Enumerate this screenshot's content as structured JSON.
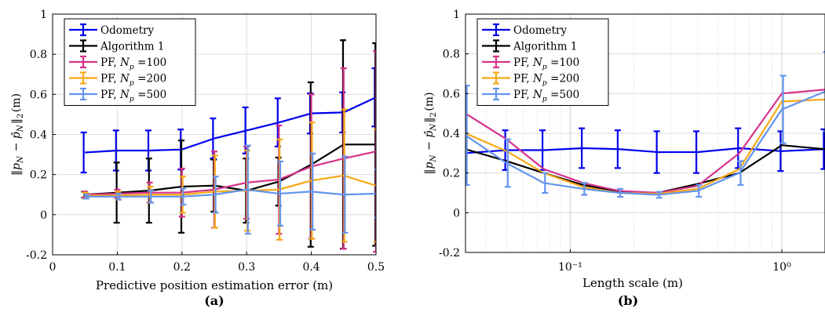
{
  "panels": [
    {
      "label": "(a)",
      "chart_data": {
        "type": "line",
        "x": [
          0.05,
          0.1,
          0.15,
          0.2,
          0.25,
          0.3,
          0.35,
          0.4,
          0.45,
          0.5
        ],
        "xlim": [
          0,
          0.5
        ],
        "ylim": [
          -0.2,
          1
        ],
        "xscale": "linear",
        "xticks": [
          0,
          0.1,
          0.2,
          0.3,
          0.4,
          0.5
        ],
        "xtick_labels": [
          "0",
          "0.1",
          "0.2",
          "0.3",
          "0.4",
          "0.5"
        ],
        "yticks": [
          -0.2,
          0,
          0.2,
          0.4,
          0.6,
          0.8,
          1
        ],
        "ytick_labels": [
          "-0.2",
          "0",
          "0.2",
          "0.4",
          "0.6",
          "0.8",
          "1"
        ],
        "xlabel": "Predictive position estimation error (m)",
        "ylabel": "‖p_N − p̂_N‖₂(m)",
        "grid": true,
        "legend_position": "top-left",
        "series": [
          {
            "name": "Odometry",
            "color": "#0000ee",
            "values": [
              0.31,
              0.32,
              0.32,
              0.325,
              0.38,
              0.42,
              0.46,
              0.505,
              0.51,
              0.585
            ],
            "err": [
              0.1,
              0.1,
              0.1,
              0.1,
              0.1,
              0.115,
              0.12,
              0.1,
              0.1,
              0.145
            ]
          },
          {
            "name": "Algorithm 1",
            "color": "#000000",
            "values": [
              0.1,
              0.11,
              0.12,
              0.14,
              0.145,
              0.12,
              0.165,
              0.25,
              0.35,
              0.35
            ],
            "err": [
              0.015,
              0.15,
              0.16,
              0.23,
              0.13,
              0.16,
              0.12,
              0.41,
              0.52,
              0.505
            ]
          },
          {
            "name": "PF, N_p =100",
            "color": "#d6338b",
            "values": [
              0.1,
              0.105,
              0.11,
              0.11,
              0.125,
              0.16,
              0.175,
              0.24,
              0.28,
              0.315
            ],
            "err": [
              0.015,
              0.02,
              0.05,
              0.12,
              0.19,
              0.18,
              0.27,
              0.36,
              0.45,
              0.5
            ]
          },
          {
            "name": "PF, N_p =200",
            "color": "#f5a814",
            "values": [
              0.095,
              0.095,
              0.1,
              0.1,
              0.115,
              0.12,
              0.125,
              0.17,
              0.195,
              0.145
            ],
            "err": [
              0.015,
              0.02,
              0.04,
              0.09,
              0.18,
              0.2,
              0.25,
              0.29,
              0.33,
              0.28
            ]
          },
          {
            "name": "PF, N_p =500",
            "color": "#6495ed",
            "values": [
              0.09,
              0.09,
              0.09,
              0.09,
              0.1,
              0.125,
              0.105,
              0.115,
              0.1,
              0.105
            ],
            "err": [
              0.01,
              0.015,
              0.03,
              0.04,
              0.09,
              0.22,
              0.16,
              0.19,
              0.19,
              0.12
            ]
          }
        ]
      }
    },
    {
      "label": "(b)",
      "chart_data": {
        "type": "line",
        "x": [
          0.032,
          0.05,
          0.075,
          0.115,
          0.17,
          0.26,
          0.4,
          0.63,
          1.0,
          1.6
        ],
        "xlim": [
          0.032,
          1.6
        ],
        "ylim": [
          -0.2,
          1
        ],
        "xscale": "log",
        "xticks": [
          0.1,
          1
        ],
        "xtick_labels": [
          "10⁻¹",
          "10⁰"
        ],
        "yticks": [
          -0.2,
          0,
          0.2,
          0.4,
          0.6,
          0.8,
          1
        ],
        "ytick_labels": [
          "-0.2",
          "0",
          "0.2",
          "0.4",
          "0.6",
          "0.8",
          "1"
        ],
        "xlabel": "Length scale (m)",
        "ylabel": "‖p_N − p̂_N‖₂(m)",
        "grid": true,
        "legend_position": "top-left",
        "series": [
          {
            "name": "Odometry",
            "color": "#0000ee",
            "values": [
              0.3,
              0.315,
              0.315,
              0.325,
              0.32,
              0.305,
              0.305,
              0.325,
              0.31,
              0.32
            ],
            "err": [
              0.1,
              0.1,
              0.1,
              0.1,
              0.095,
              0.105,
              0.105,
              0.1,
              0.1,
              0.1
            ]
          },
          {
            "name": "Algorithm 1",
            "color": "#000000",
            "values": [
              0.32,
              0.26,
              0.2,
              0.14,
              0.105,
              0.1,
              0.145,
              0.2,
              0.34,
              0.32
            ]
          },
          {
            "name": "PF, N_p =100",
            "color": "#d6338b",
            "values": [
              0.5,
              0.37,
              0.22,
              0.15,
              0.11,
              0.1,
              0.135,
              0.3,
              0.6,
              0.62
            ]
          },
          {
            "name": "PF, N_p =200",
            "color": "#f5a814",
            "values": [
              0.4,
              0.31,
              0.2,
              0.13,
              0.1,
              0.095,
              0.12,
              0.22,
              0.56,
              0.57
            ]
          },
          {
            "name": "PF, N_p =500",
            "color": "#6495ed",
            "values": [
              0.39,
              0.25,
              0.15,
              0.12,
              0.1,
              0.09,
              0.11,
              0.2,
              0.52,
              0.61
            ],
            "err": [
              0.25,
              0.12,
              0.05,
              0.03,
              0.02,
              0.015,
              0.03,
              0.06,
              0.17,
              0.2
            ]
          }
        ]
      }
    }
  ]
}
